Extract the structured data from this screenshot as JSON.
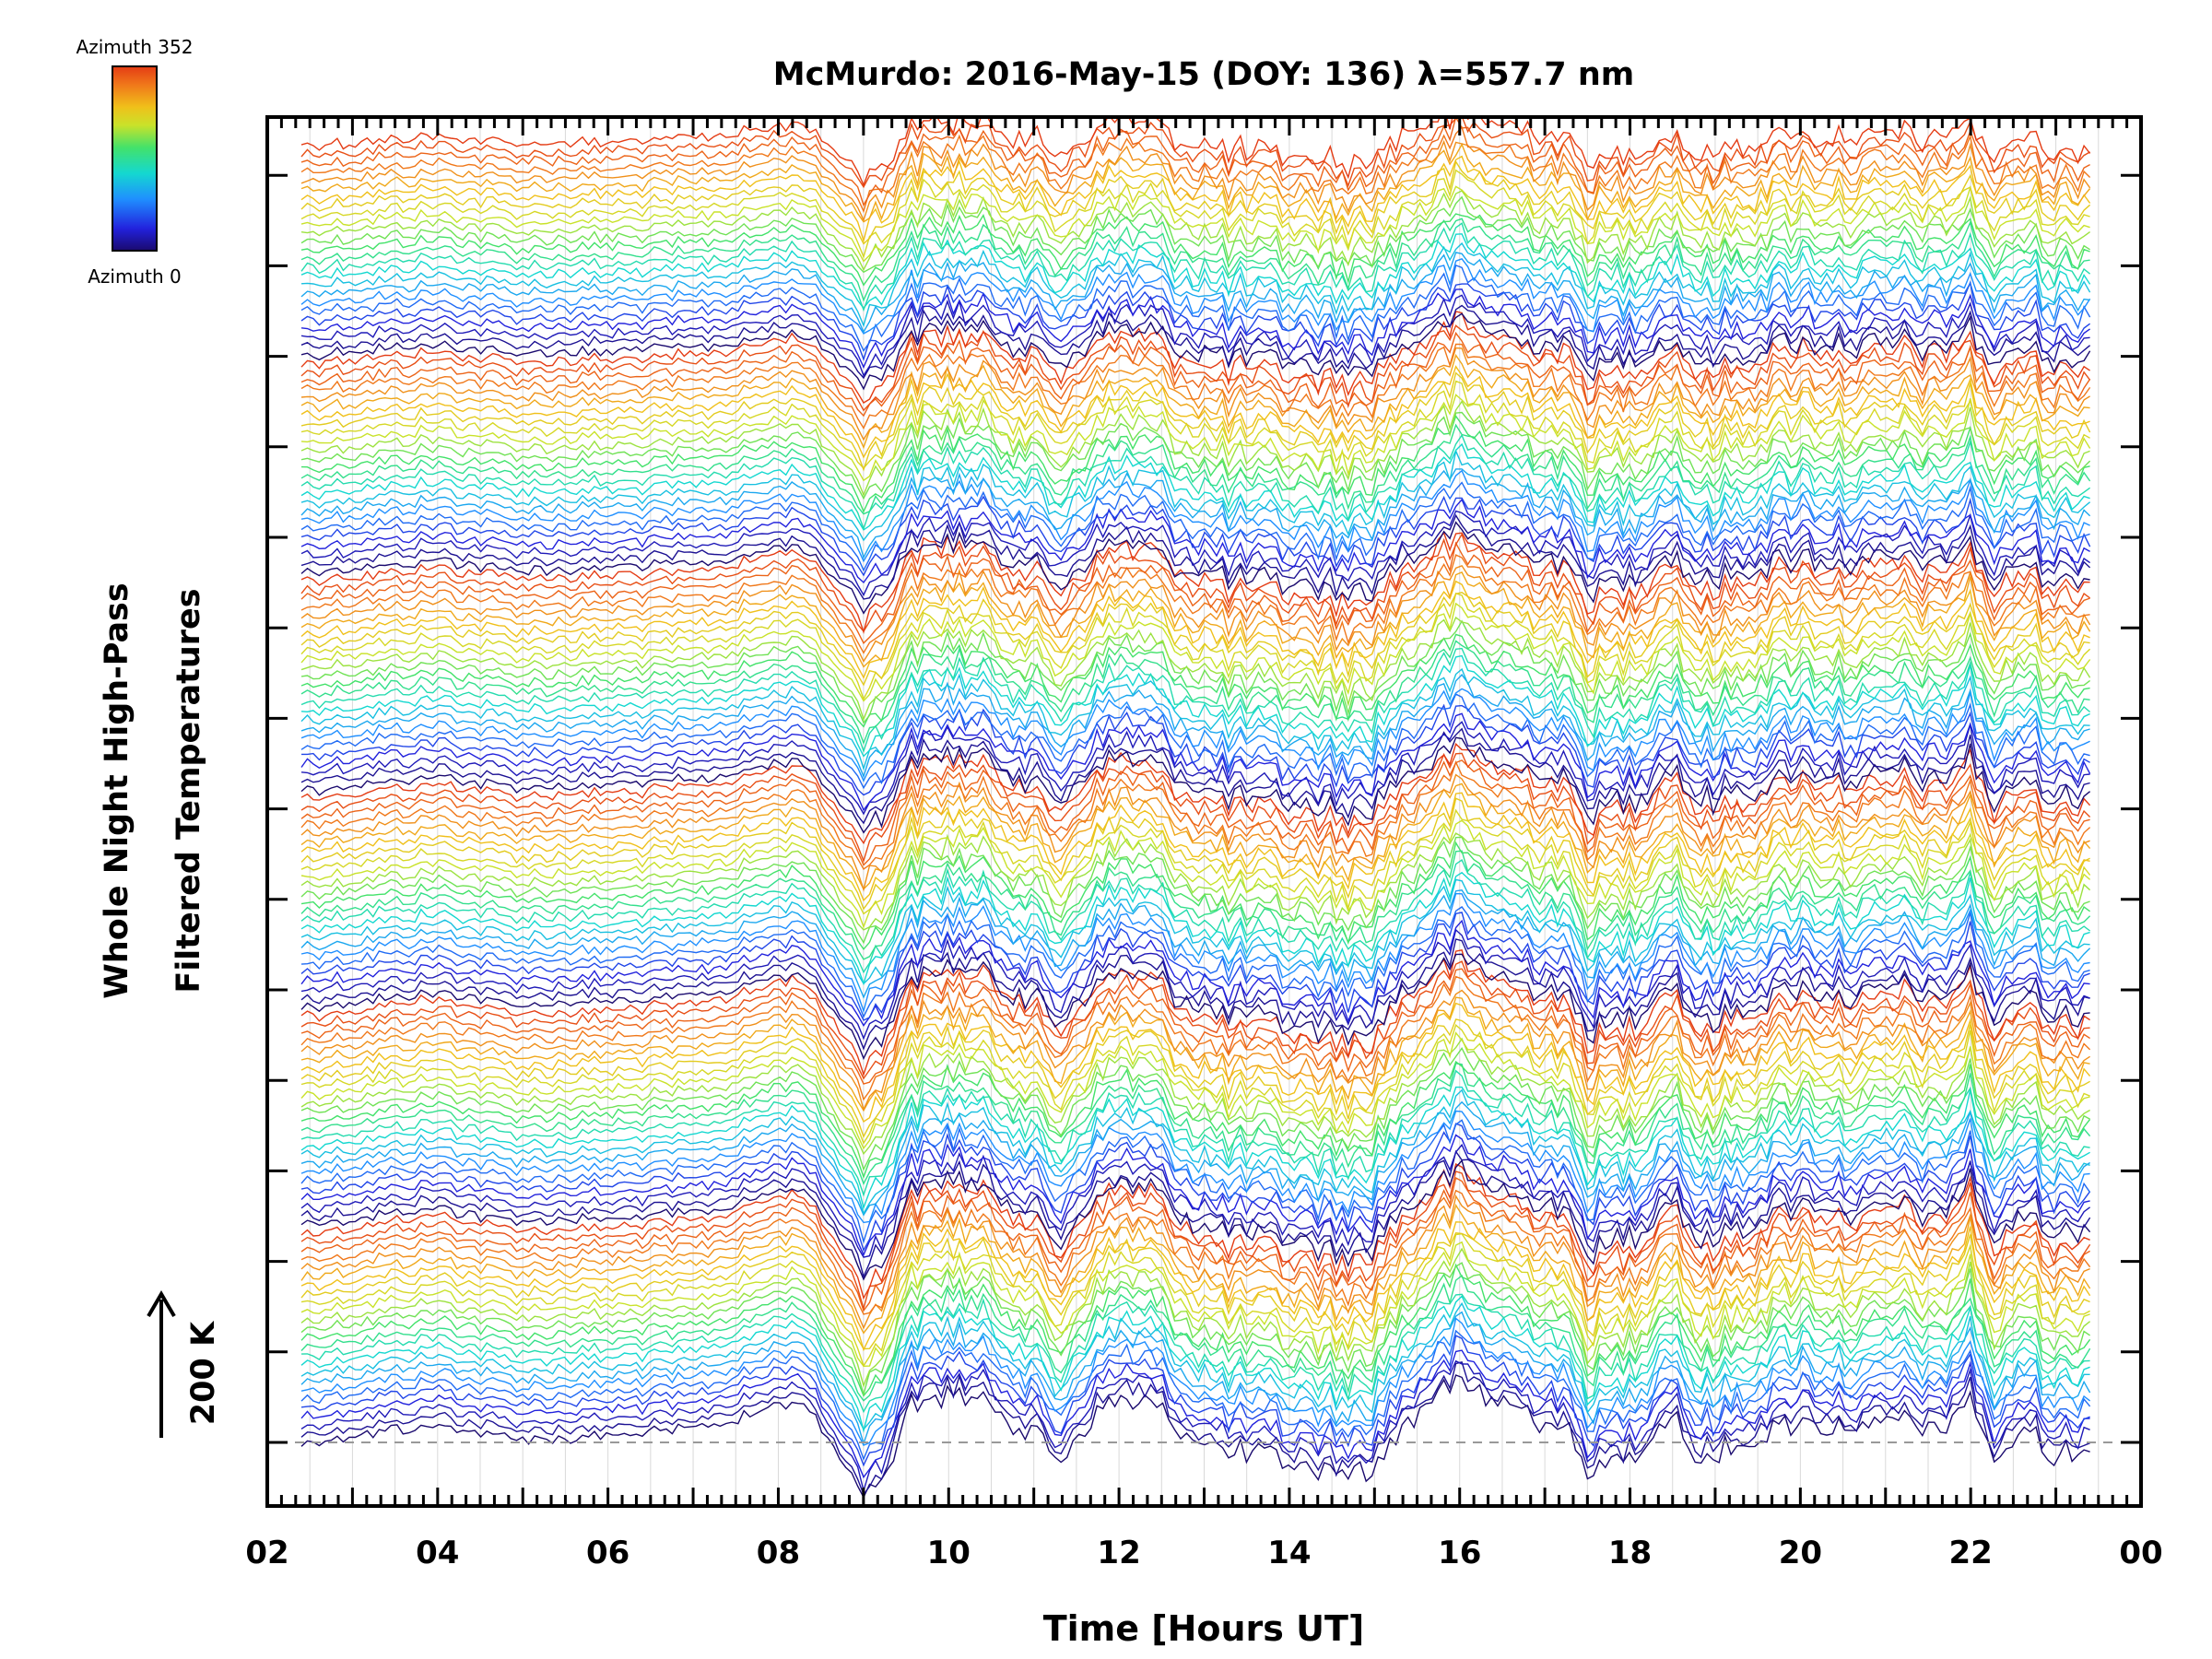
{
  "chart_data": {
    "type": "line",
    "title": "McMurdo: 2016-May-15 (DOY: 136) λ=557.7 nm",
    "xlabel": "Time [Hours UT]",
    "ylabel_line1": "Whole Night High-Pass",
    "ylabel_line2": "Filtered Temperatures",
    "scale_label": "200 K",
    "xlim": [
      2,
      24
    ],
    "x_tick_labels": [
      "02",
      "04",
      "06",
      "08",
      "10",
      "12",
      "14",
      "16",
      "18",
      "20",
      "22",
      "00"
    ],
    "grid": true,
    "legend_placement": "top-left colorbar",
    "colorbar": {
      "top_label": "Azimuth 352",
      "bottom_label": "Azimuth 0",
      "colormap": "rainbow",
      "colors": [
        "#1a0a6e",
        "#2222dd",
        "#1f8fff",
        "#14d8d0",
        "#43e26a",
        "#c9e22a",
        "#f0c01a",
        "#f0781a",
        "#e43c14"
      ]
    },
    "series_layout": {
      "count": 150,
      "groups": 6,
      "per_group": 25,
      "azimuth_min": 0,
      "azimuth_max": 352,
      "note_stack": "stacked offset traces, one per azimuth per zenith ring"
    },
    "envelope": {
      "x": [
        2.4,
        3.0,
        3.5,
        4.0,
        4.5,
        5.0,
        6.0,
        7.0,
        7.5,
        8.0,
        8.3,
        8.7,
        9.0,
        9.2,
        9.5,
        10.0,
        10.5,
        11.0,
        11.3,
        11.6,
        12.0,
        12.4,
        12.8,
        13.2,
        13.6,
        14.0,
        14.5,
        14.9,
        15.3,
        15.7,
        16.0,
        16.4,
        16.8,
        17.2,
        17.5,
        17.8,
        18.1,
        18.5,
        18.8,
        19.2,
        19.6,
        20.0,
        20.4,
        20.8,
        21.2,
        21.6,
        22.0,
        22.3,
        22.6,
        23.0,
        23.4
      ],
      "amplitude": [
        0.0,
        0.2,
        0.4,
        0.6,
        0.3,
        0.1,
        0.2,
        0.4,
        0.7,
        1.2,
        1.3,
        -0.4,
        -1.6,
        -1.4,
        1.0,
        1.6,
        1.2,
        0.3,
        -0.6,
        0.6,
        1.5,
        1.2,
        0.2,
        -0.3,
        -0.4,
        -0.6,
        -0.9,
        -1.0,
        0.4,
        1.4,
        1.9,
        1.3,
        0.9,
        0.6,
        -0.9,
        -0.6,
        -0.3,
        1.0,
        -0.6,
        -0.2,
        0.3,
        0.8,
        0.5,
        0.4,
        0.8,
        0.2,
        1.5,
        -0.8,
        0.6,
        -0.4,
        -0.2
      ]
    }
  }
}
